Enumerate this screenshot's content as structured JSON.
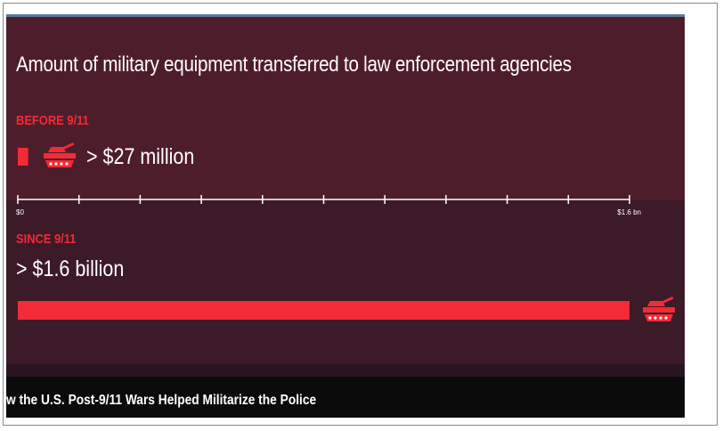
{
  "video": {
    "caption": "w the U.S. Post-9/11 Wars Helped Militarize the Police"
  },
  "colors": {
    "bar": "#f22b36",
    "label": "#f22b36",
    "text": "#ffffff",
    "axis": "#ffffff"
  },
  "icons": {
    "tank": "tank-icon"
  },
  "chart_data": {
    "type": "bar",
    "orientation": "horizontal",
    "title": "Amount of military equipment transferred to law enforcement agencies",
    "unit": "USD",
    "categories": [
      "BEFORE 9/11",
      "SINCE 9/11"
    ],
    "values": [
      27000000,
      1600000000
    ],
    "value_labels": [
      "> $27 million",
      "> $1.6 billion"
    ],
    "xlim": [
      0,
      1600000000
    ],
    "x_ticks": 10,
    "tick_labels": {
      "min": "$0",
      "max": "$1.6 bn"
    },
    "grid": false,
    "legend": "none"
  }
}
